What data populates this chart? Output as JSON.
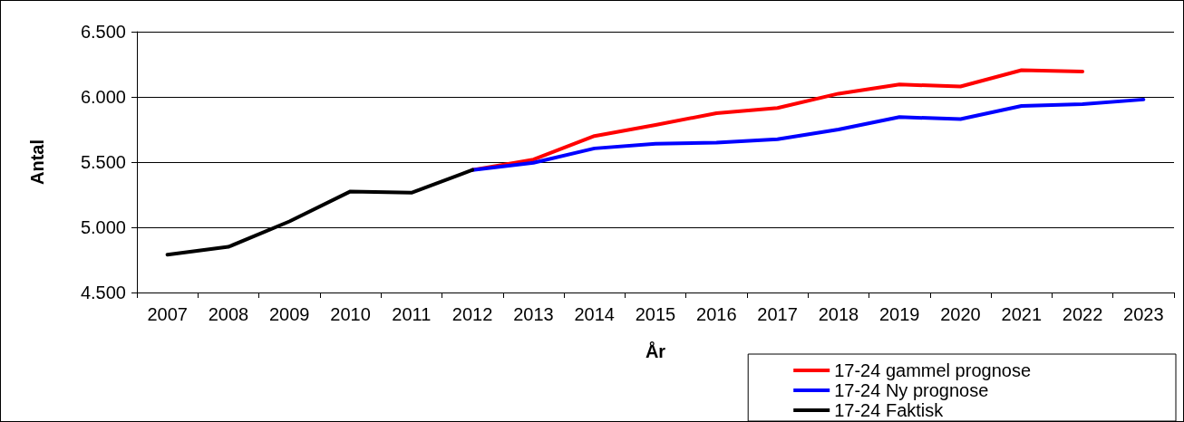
{
  "chart_data": {
    "type": "line",
    "xlabel": "År",
    "ylabel": "Antal",
    "categories": [
      "2007",
      "2008",
      "2009",
      "2010",
      "2011",
      "2012",
      "2013",
      "2014",
      "2015",
      "2016",
      "2017",
      "2018",
      "2019",
      "2020",
      "2021",
      "2022",
      "2023"
    ],
    "series": [
      {
        "name": "17-24 gammel prognose",
        "color": "#ff0000",
        "values": [
          null,
          null,
          null,
          null,
          null,
          5440,
          5520,
          5700,
          5785,
          5875,
          5915,
          6025,
          6095,
          6080,
          6205,
          6195,
          null
        ]
      },
      {
        "name": "17-24 Ny prognose",
        "color": "#0000ff",
        "values": [
          null,
          null,
          null,
          null,
          null,
          5440,
          5495,
          5605,
          5640,
          5650,
          5675,
          5750,
          5845,
          5830,
          5930,
          5945,
          5980
        ]
      },
      {
        "name": "17-24 Faktisk",
        "color": "#000000",
        "values": [
          4790,
          4850,
          5045,
          5275,
          5265,
          5440,
          null,
          null,
          null,
          null,
          null,
          null,
          null,
          null,
          null,
          null,
          null
        ]
      }
    ],
    "ylim": [
      4500,
      6500
    ],
    "yticks": [
      {
        "value": 4500,
        "label": "4.500"
      },
      {
        "value": 5000,
        "label": "5.000"
      },
      {
        "value": 5500,
        "label": "5.500"
      },
      {
        "value": 6000,
        "label": "6.000"
      },
      {
        "value": 6500,
        "label": "6.500"
      }
    ],
    "grid": "y",
    "legend": "bottom right",
    "marker": "none",
    "line_style": "solid"
  }
}
